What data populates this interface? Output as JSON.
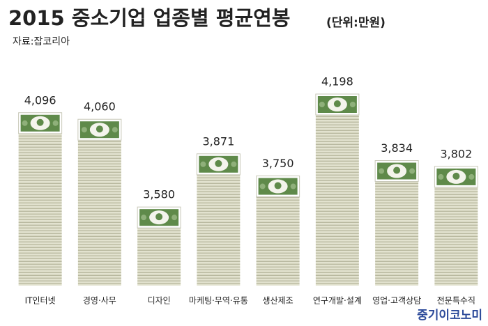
{
  "chart_data": {
    "type": "bar",
    "title": "2015 중소기업 업종별 평균연봉",
    "subtitle": "(단위:만원)",
    "source": "자료:잡코리아",
    "brand": "중기이코노미",
    "categories": [
      "IT인터넷",
      "경영·사무",
      "디자인",
      "마케팅·무역·유통",
      "생산제조",
      "연구개발·설계",
      "영업·고객상담",
      "전문특수직"
    ],
    "values": [
      4096,
      4060,
      3580,
      3871,
      3750,
      4198,
      3834,
      3802
    ],
    "value_labels": [
      "4,096",
      "4,060",
      "3,580",
      "3,871",
      "3,750",
      "4,198",
      "3,834",
      "3,802"
    ],
    "color": "#d8d8c4",
    "bill_color": "#5f8a4a",
    "ylim": [
      3150,
      4400
    ]
  }
}
